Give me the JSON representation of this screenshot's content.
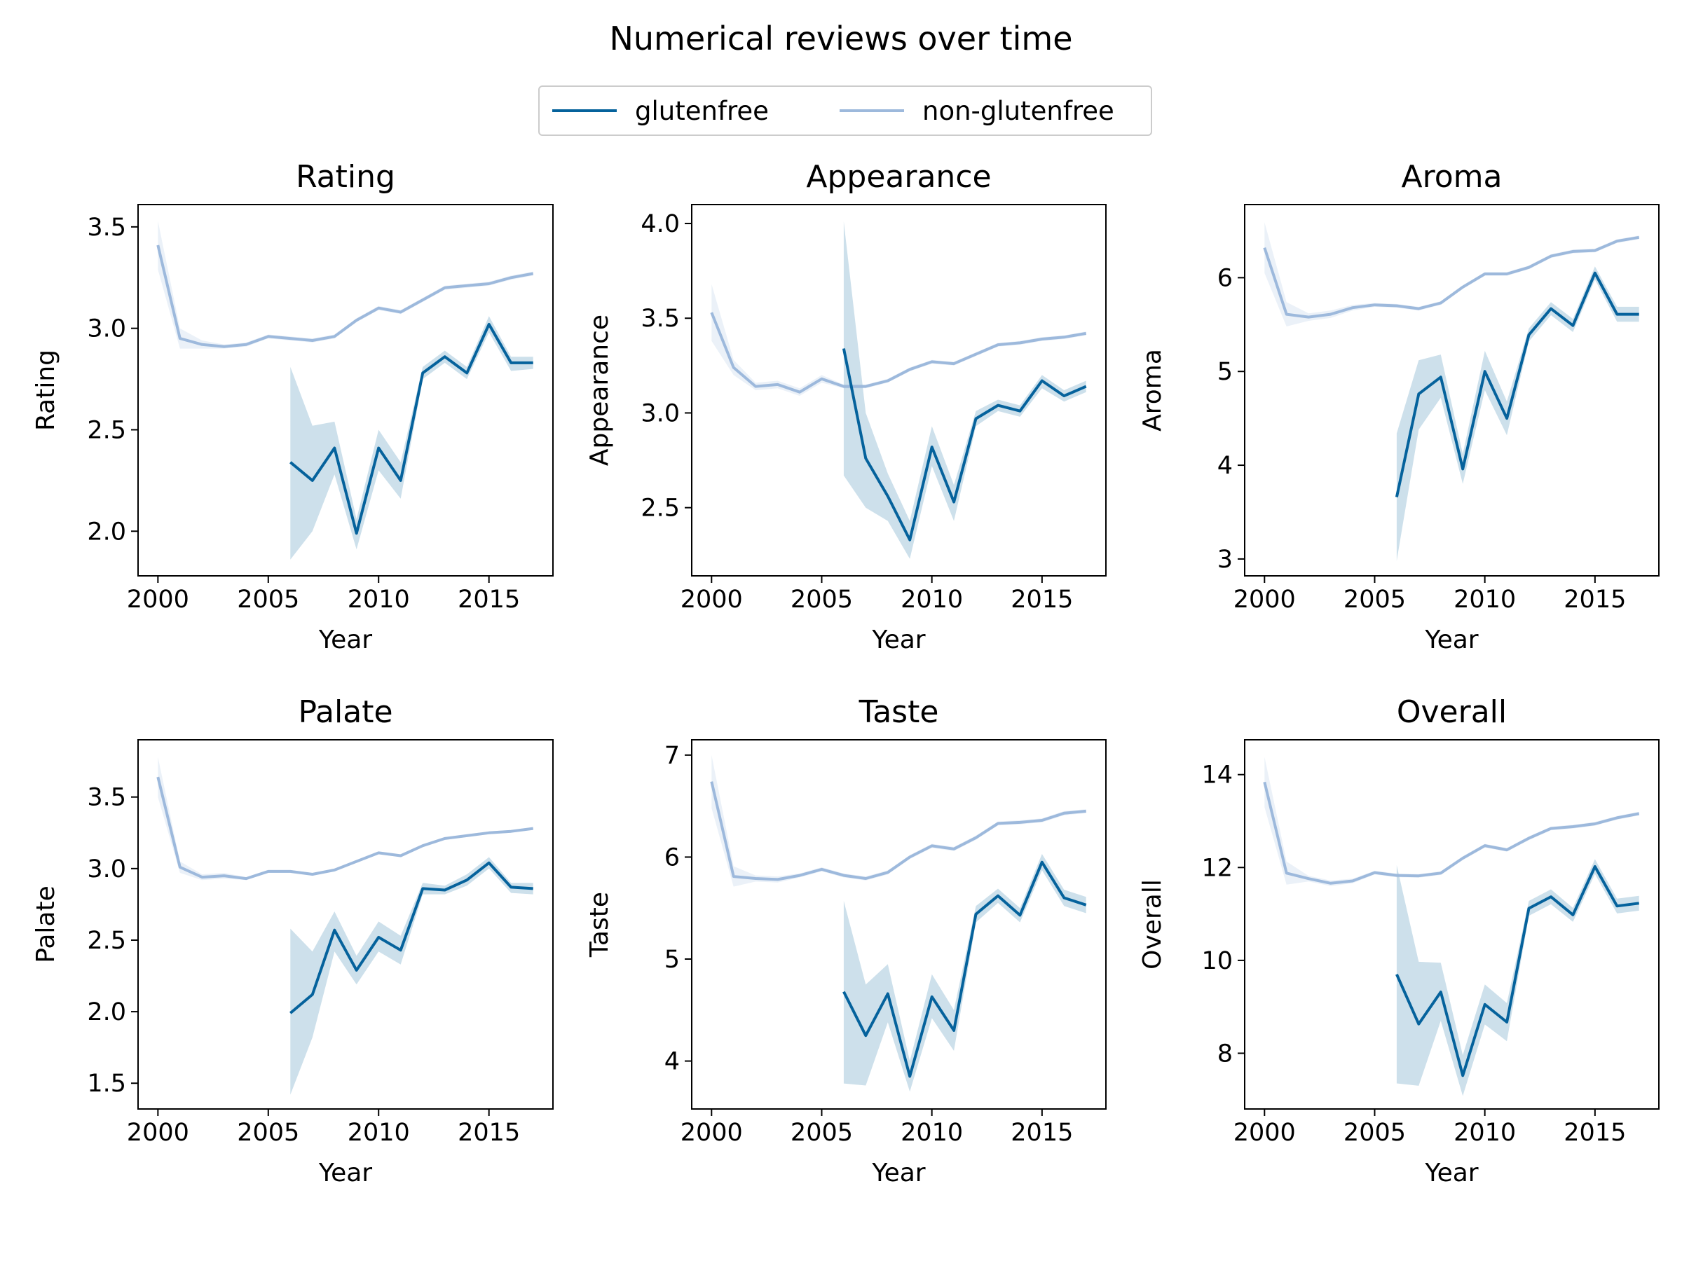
{
  "figure": {
    "suptitle": "Numerical reviews over time",
    "legend": [
      {
        "label": "glutenfree",
        "color": "#05629c"
      },
      {
        "label": "non-glutenfree",
        "color": "#9db9dc"
      }
    ]
  },
  "chart_data": [
    {
      "type": "line",
      "title": "Rating",
      "xlabel": "Year",
      "ylabel": "Rating",
      "xlim": [
        1999.1,
        2017.9
      ],
      "ylim": [
        1.78,
        3.61
      ],
      "xticks": [
        2000,
        2005,
        2010,
        2015
      ],
      "yticks": [
        2.0,
        2.5,
        3.0,
        3.5
      ],
      "series": [
        {
          "name": "glutenfree",
          "x": [
            2006,
            2007,
            2008,
            2009,
            2010,
            2011,
            2012,
            2013,
            2014,
            2015,
            2016,
            2017
          ],
          "y": [
            2.34,
            2.25,
            2.41,
            1.99,
            2.41,
            2.25,
            2.78,
            2.86,
            2.78,
            3.02,
            2.83,
            2.83
          ],
          "ci_low": [
            1.86,
            2.0,
            2.28,
            1.91,
            2.3,
            2.16,
            2.75,
            2.83,
            2.75,
            2.98,
            2.79,
            2.8
          ],
          "ci_high": [
            2.81,
            2.52,
            2.54,
            2.06,
            2.5,
            2.34,
            2.81,
            2.89,
            2.81,
            3.06,
            2.86,
            2.86
          ]
        },
        {
          "name": "non-glutenfree",
          "x": [
            2000,
            2001,
            2002,
            2003,
            2004,
            2005,
            2006,
            2007,
            2008,
            2009,
            2010,
            2011,
            2012,
            2013,
            2014,
            2015,
            2016,
            2017
          ],
          "y": [
            3.41,
            2.95,
            2.92,
            2.91,
            2.92,
            2.96,
            2.95,
            2.94,
            2.96,
            3.04,
            3.1,
            3.08,
            3.14,
            3.2,
            3.21,
            3.22,
            3.25,
            3.27
          ],
          "ci_low": [
            3.29,
            2.9,
            2.9,
            2.9,
            2.91,
            2.95,
            2.94,
            2.93,
            2.95,
            3.03,
            3.09,
            3.07,
            3.13,
            3.19,
            3.2,
            3.21,
            3.24,
            3.26
          ],
          "ci_high": [
            3.53,
            3.0,
            2.94,
            2.92,
            2.93,
            2.97,
            2.96,
            2.95,
            2.97,
            3.05,
            3.11,
            3.09,
            3.15,
            3.21,
            3.22,
            3.23,
            3.26,
            3.28
          ]
        }
      ]
    },
    {
      "type": "line",
      "title": "Appearance",
      "xlabel": "Year",
      "ylabel": "Appearance",
      "xlim": [
        1999.1,
        2017.9
      ],
      "ylim": [
        2.14,
        4.1
      ],
      "xticks": [
        2000,
        2005,
        2010,
        2015
      ],
      "yticks": [
        2.5,
        3.0,
        3.5,
        4.0
      ],
      "series": [
        {
          "name": "glutenfree",
          "x": [
            2006,
            2007,
            2008,
            2009,
            2010,
            2011,
            2012,
            2013,
            2014,
            2015,
            2016,
            2017
          ],
          "y": [
            3.34,
            2.76,
            2.56,
            2.33,
            2.82,
            2.53,
            2.97,
            3.04,
            3.01,
            3.17,
            3.09,
            3.14
          ],
          "ci_low": [
            2.67,
            2.5,
            2.43,
            2.23,
            2.72,
            2.43,
            2.93,
            3.01,
            2.98,
            3.13,
            3.06,
            3.11
          ],
          "ci_high": [
            4.01,
            3.0,
            2.68,
            2.43,
            2.93,
            2.62,
            3.01,
            3.07,
            3.04,
            3.2,
            3.12,
            3.17
          ]
        },
        {
          "name": "non-glutenfree",
          "x": [
            2000,
            2001,
            2002,
            2003,
            2004,
            2005,
            2006,
            2007,
            2008,
            2009,
            2010,
            2011,
            2012,
            2013,
            2014,
            2015,
            2016,
            2017
          ],
          "y": [
            3.53,
            3.24,
            3.14,
            3.15,
            3.11,
            3.18,
            3.14,
            3.14,
            3.17,
            3.23,
            3.27,
            3.26,
            3.31,
            3.36,
            3.37,
            3.39,
            3.4,
            3.42
          ],
          "ci_low": [
            3.38,
            3.2,
            3.12,
            3.13,
            3.09,
            3.16,
            3.13,
            3.13,
            3.16,
            3.22,
            3.26,
            3.25,
            3.3,
            3.35,
            3.36,
            3.38,
            3.39,
            3.41
          ],
          "ci_high": [
            3.68,
            3.28,
            3.16,
            3.17,
            3.13,
            3.2,
            3.15,
            3.15,
            3.18,
            3.24,
            3.28,
            3.27,
            3.32,
            3.37,
            3.38,
            3.4,
            3.41,
            3.43
          ]
        }
      ]
    },
    {
      "type": "line",
      "title": "Aroma",
      "xlabel": "Year",
      "ylabel": "Aroma",
      "xlim": [
        1999.1,
        2017.9
      ],
      "ylim": [
        2.82,
        6.78
      ],
      "xticks": [
        2000,
        2005,
        2010,
        2015
      ],
      "yticks": [
        3,
        4,
        5,
        6
      ],
      "series": [
        {
          "name": "glutenfree",
          "x": [
            2006,
            2007,
            2008,
            2009,
            2010,
            2011,
            2012,
            2013,
            2014,
            2015,
            2016,
            2017
          ],
          "y": [
            3.66,
            4.76,
            4.94,
            3.96,
            5.0,
            4.5,
            5.39,
            5.67,
            5.49,
            6.05,
            5.61,
            5.61
          ],
          "ci_low": [
            2.98,
            4.38,
            4.72,
            3.8,
            4.8,
            4.32,
            5.32,
            5.6,
            5.42,
            5.98,
            5.53,
            5.53
          ],
          "ci_high": [
            4.34,
            5.12,
            5.18,
            4.12,
            5.22,
            4.68,
            5.46,
            5.74,
            5.56,
            6.12,
            5.69,
            5.69
          ]
        },
        {
          "name": "non-glutenfree",
          "x": [
            2000,
            2001,
            2002,
            2003,
            2004,
            2005,
            2006,
            2007,
            2008,
            2009,
            2010,
            2011,
            2012,
            2013,
            2014,
            2015,
            2016,
            2017
          ],
          "y": [
            6.32,
            5.61,
            5.58,
            5.61,
            5.68,
            5.71,
            5.7,
            5.67,
            5.73,
            5.9,
            6.04,
            6.04,
            6.11,
            6.23,
            6.28,
            6.29,
            6.39,
            6.43
          ],
          "ci_low": [
            6.05,
            5.48,
            5.54,
            5.57,
            5.65,
            5.69,
            5.68,
            5.65,
            5.71,
            5.88,
            6.02,
            6.02,
            6.09,
            6.21,
            6.26,
            6.27,
            6.37,
            6.41
          ],
          "ci_high": [
            6.59,
            5.74,
            5.62,
            5.65,
            5.71,
            5.73,
            5.72,
            5.69,
            5.75,
            5.92,
            6.06,
            6.06,
            6.13,
            6.25,
            6.3,
            6.31,
            6.41,
            6.45
          ]
        }
      ]
    },
    {
      "type": "line",
      "title": "Palate",
      "xlabel": "Year",
      "ylabel": "Palate",
      "xlim": [
        1999.1,
        2017.9
      ],
      "ylim": [
        1.32,
        3.9
      ],
      "xticks": [
        2000,
        2005,
        2010,
        2015
      ],
      "yticks": [
        1.5,
        2.0,
        2.5,
        3.0,
        3.5
      ],
      "series": [
        {
          "name": "glutenfree",
          "x": [
            2006,
            2007,
            2008,
            2009,
            2010,
            2011,
            2012,
            2013,
            2014,
            2015,
            2016,
            2017
          ],
          "y": [
            1.99,
            2.12,
            2.57,
            2.29,
            2.52,
            2.43,
            2.86,
            2.85,
            2.92,
            3.04,
            2.87,
            2.86
          ],
          "ci_low": [
            1.42,
            1.82,
            2.42,
            2.19,
            2.42,
            2.33,
            2.82,
            2.82,
            2.88,
            3.0,
            2.83,
            2.82
          ],
          "ci_high": [
            2.58,
            2.42,
            2.7,
            2.39,
            2.63,
            2.53,
            2.9,
            2.88,
            2.96,
            3.08,
            2.9,
            2.9
          ]
        },
        {
          "name": "non-glutenfree",
          "x": [
            2000,
            2001,
            2002,
            2003,
            2004,
            2005,
            2006,
            2007,
            2008,
            2009,
            2010,
            2011,
            2012,
            2013,
            2014,
            2015,
            2016,
            2017
          ],
          "y": [
            3.64,
            3.01,
            2.94,
            2.95,
            2.93,
            2.98,
            2.98,
            2.96,
            2.99,
            3.05,
            3.11,
            3.09,
            3.16,
            3.21,
            3.23,
            3.25,
            3.26,
            3.28
          ],
          "ci_low": [
            3.5,
            2.97,
            2.92,
            2.93,
            2.92,
            2.97,
            2.97,
            2.95,
            2.98,
            3.04,
            3.1,
            3.08,
            3.15,
            3.2,
            3.22,
            3.24,
            3.25,
            3.27
          ],
          "ci_high": [
            3.78,
            3.05,
            2.96,
            2.97,
            2.94,
            2.99,
            2.99,
            2.97,
            3.0,
            3.06,
            3.12,
            3.1,
            3.17,
            3.22,
            3.24,
            3.26,
            3.27,
            3.29
          ]
        }
      ]
    },
    {
      "type": "line",
      "title": "Taste",
      "xlabel": "Year",
      "ylabel": "Taste",
      "xlim": [
        1999.1,
        2017.9
      ],
      "ylim": [
        3.53,
        7.15
      ],
      "xticks": [
        2000,
        2005,
        2010,
        2015
      ],
      "yticks": [
        4,
        5,
        6,
        7
      ],
      "series": [
        {
          "name": "glutenfree",
          "x": [
            2006,
            2007,
            2008,
            2009,
            2010,
            2011,
            2012,
            2013,
            2014,
            2015,
            2016,
            2017
          ],
          "y": [
            4.68,
            4.25,
            4.66,
            3.85,
            4.63,
            4.3,
            5.44,
            5.62,
            5.43,
            5.95,
            5.6,
            5.53
          ],
          "ci_low": [
            3.78,
            3.76,
            4.38,
            3.7,
            4.42,
            4.1,
            5.36,
            5.55,
            5.36,
            5.87,
            5.52,
            5.45
          ],
          "ci_high": [
            5.57,
            4.75,
            4.95,
            4.0,
            4.85,
            4.5,
            5.52,
            5.69,
            5.5,
            6.03,
            5.68,
            5.61
          ]
        },
        {
          "name": "non-glutenfree",
          "x": [
            2000,
            2001,
            2002,
            2003,
            2004,
            2005,
            2006,
            2007,
            2008,
            2009,
            2010,
            2011,
            2012,
            2013,
            2014,
            2015,
            2016,
            2017
          ],
          "y": [
            6.74,
            5.81,
            5.79,
            5.78,
            5.82,
            5.88,
            5.82,
            5.79,
            5.85,
            6.0,
            6.11,
            6.08,
            6.19,
            6.33,
            6.34,
            6.36,
            6.43,
            6.45
          ],
          "ci_low": [
            6.48,
            5.71,
            5.76,
            5.75,
            5.8,
            5.86,
            5.8,
            5.77,
            5.83,
            5.98,
            6.09,
            6.06,
            6.17,
            6.31,
            6.32,
            6.34,
            6.41,
            6.43
          ],
          "ci_high": [
            7.0,
            5.91,
            5.82,
            5.81,
            5.84,
            5.9,
            5.84,
            5.81,
            5.87,
            6.02,
            6.13,
            6.1,
            6.21,
            6.35,
            6.36,
            6.38,
            6.45,
            6.47
          ]
        }
      ]
    },
    {
      "type": "line",
      "title": "Overall",
      "xlabel": "Year",
      "ylabel": "Overall",
      "xlim": [
        1999.1,
        2017.9
      ],
      "ylim": [
        6.8,
        14.75
      ],
      "xticks": [
        2000,
        2005,
        2010,
        2015
      ],
      "yticks": [
        8,
        10,
        12,
        14
      ],
      "series": [
        {
          "name": "glutenfree",
          "x": [
            2006,
            2007,
            2008,
            2009,
            2010,
            2011,
            2012,
            2013,
            2014,
            2015,
            2016,
            2017
          ],
          "y": [
            9.7,
            8.63,
            9.32,
            7.52,
            9.05,
            8.67,
            11.12,
            11.37,
            10.98,
            12.02,
            11.17,
            11.23
          ],
          "ci_low": [
            7.35,
            7.3,
            8.7,
            7.08,
            8.62,
            8.26,
            10.96,
            11.21,
            10.83,
            11.86,
            11.01,
            11.07
          ],
          "ci_high": [
            12.05,
            9.97,
            9.95,
            7.96,
            9.48,
            9.08,
            11.28,
            11.53,
            11.13,
            12.18,
            11.33,
            11.39
          ]
        },
        {
          "name": "non-glutenfree",
          "x": [
            2000,
            2001,
            2002,
            2003,
            2004,
            2005,
            2006,
            2007,
            2008,
            2009,
            2010,
            2011,
            2012,
            2013,
            2014,
            2015,
            2016,
            2017
          ],
          "y": [
            13.84,
            11.88,
            11.76,
            11.66,
            11.71,
            11.89,
            11.83,
            11.82,
            11.88,
            12.2,
            12.47,
            12.38,
            12.63,
            12.84,
            12.88,
            12.94,
            13.07,
            13.16
          ],
          "ci_low": [
            13.3,
            11.63,
            11.7,
            11.6,
            11.66,
            11.85,
            11.79,
            11.78,
            11.84,
            12.16,
            12.43,
            12.34,
            12.59,
            12.8,
            12.84,
            12.9,
            13.03,
            13.12
          ],
          "ci_high": [
            14.38,
            12.13,
            11.82,
            11.72,
            11.76,
            11.93,
            11.87,
            11.86,
            11.92,
            12.24,
            12.51,
            12.42,
            12.67,
            12.88,
            12.92,
            12.98,
            13.11,
            13.2
          ]
        }
      ]
    }
  ]
}
